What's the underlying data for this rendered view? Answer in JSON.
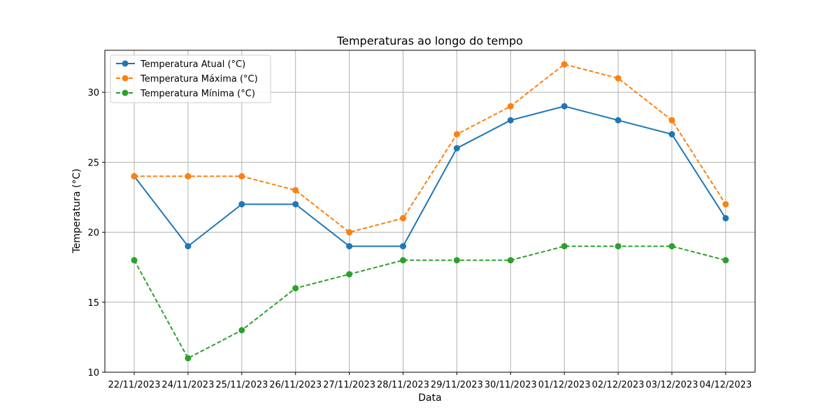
{
  "chart_data": {
    "type": "line",
    "title": "Temperaturas ao longo do tempo",
    "xlabel": "Data",
    "ylabel": "Temperatura (°C)",
    "categories": [
      "22/11/2023",
      "24/11/2023",
      "25/11/2023",
      "26/11/2023",
      "27/11/2023",
      "28/11/2023",
      "29/11/2023",
      "30/11/2023",
      "01/12/2023",
      "02/12/2023",
      "03/12/2023",
      "04/12/2023"
    ],
    "ylim": [
      10,
      33
    ],
    "yticks": [
      10,
      15,
      20,
      25,
      30
    ],
    "grid": true,
    "legend_position": "top-left",
    "series": [
      {
        "name": "Temperatura Atual (°C)",
        "color": "#1f77b4",
        "dashed": false,
        "values": [
          24,
          19,
          22,
          22,
          19,
          19,
          26,
          28,
          29,
          28,
          27,
          21
        ]
      },
      {
        "name": "Temperatura Máxima (°C)",
        "color": "#ff7f0e",
        "dashed": true,
        "values": [
          24,
          24,
          24,
          23,
          20,
          21,
          27,
          29,
          32,
          31,
          28,
          22
        ]
      },
      {
        "name": "Temperatura Mínima (°C)",
        "color": "#2ca02c",
        "dashed": true,
        "values": [
          18,
          11,
          13,
          16,
          17,
          18,
          18,
          18,
          19,
          19,
          19,
          18
        ]
      }
    ]
  }
}
